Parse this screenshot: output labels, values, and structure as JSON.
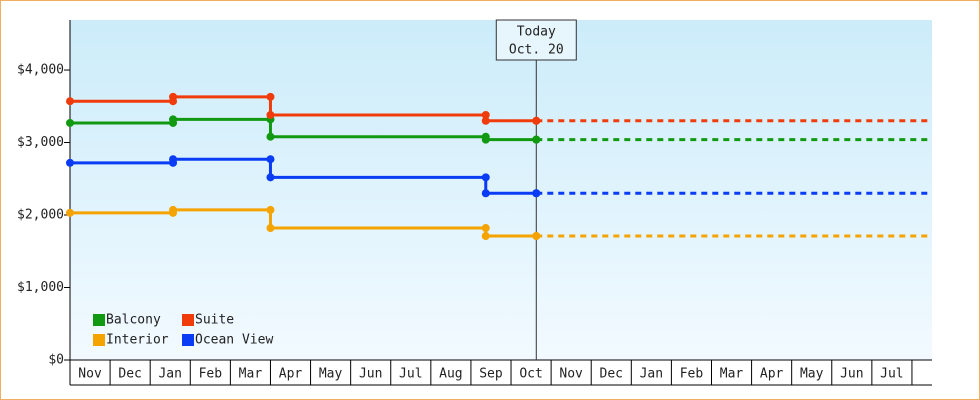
{
  "chart_data": {
    "type": "step",
    "categories": [
      "Nov",
      "Dec",
      "Jan",
      "Feb",
      "Mar",
      "Apr",
      "May",
      "Jun",
      "Jul",
      "Aug",
      "Sep",
      "Oct",
      "Nov",
      "Dec",
      "Jan",
      "Feb",
      "Mar",
      "Apr",
      "May",
      "Jun",
      "Jul"
    ],
    "x": [
      0,
      2.57,
      5.0,
      10.37,
      11.63
    ],
    "xlim": [
      0,
      21.5
    ],
    "ylim": [
      0,
      4690
    ],
    "yticks": [
      {
        "value": 0,
        "label": "$0"
      },
      {
        "value": 1000,
        "label": "$1,000"
      },
      {
        "value": 2000,
        "label": "$2,000"
      },
      {
        "value": 3000,
        "label": "$3,000"
      },
      {
        "value": 4000,
        "label": "$4,000"
      }
    ],
    "series": [
      {
        "name": "Balcony",
        "color": "#119911",
        "values": [
          3270,
          3320,
          3080,
          3040,
          3040
        ]
      },
      {
        "name": "Suite",
        "color": "#f03c0a",
        "values": [
          3570,
          3630,
          3380,
          3300,
          3300
        ]
      },
      {
        "name": "Interior",
        "color": "#f5a300",
        "values": [
          2030,
          2070,
          1820,
          1710,
          1710
        ]
      },
      {
        "name": "Ocean View",
        "color": "#0a3cf5",
        "values": [
          2720,
          2770,
          2520,
          2300,
          2300
        ]
      }
    ],
    "annotation": {
      "x": 11.63,
      "lines": [
        "Today",
        "Oct. 20"
      ]
    }
  }
}
